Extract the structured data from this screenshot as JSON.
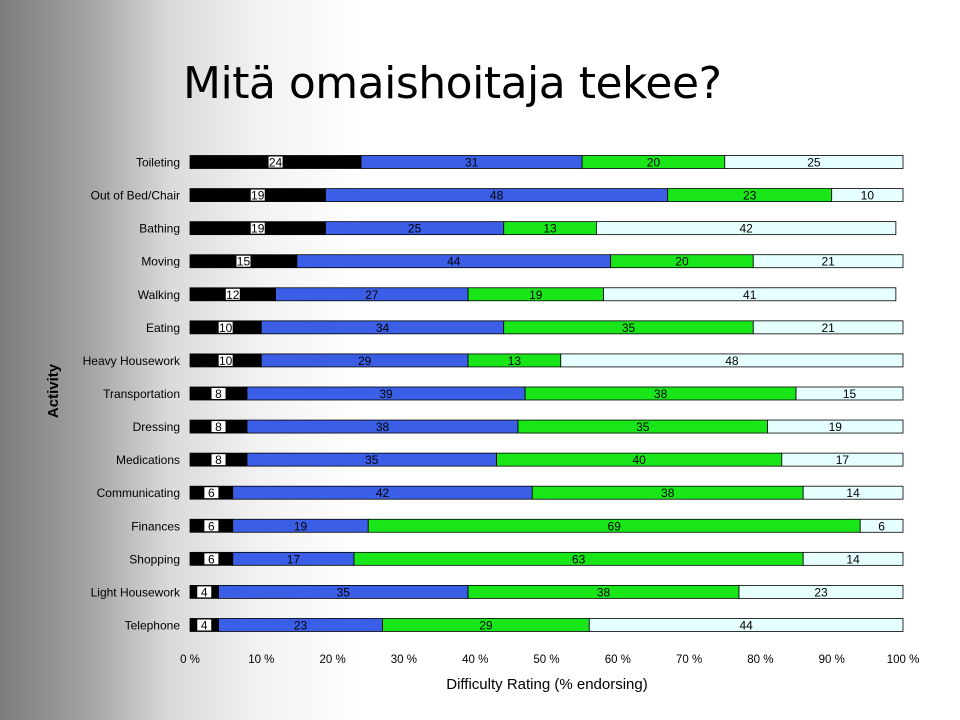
{
  "slide": {
    "title": "Mitä omaishoitaja tekee?"
  },
  "colors": {
    "segment_1": "#000000",
    "segment_2": "#3a5fe6",
    "segment_3": "#19e619",
    "segment_4": "#e6ffff",
    "label_box": "#ffffff"
  },
  "chart_data": {
    "type": "bar",
    "orientation": "horizontal",
    "stacked": true,
    "percent_scale": true,
    "title": "",
    "xlabel": "Difficulty Rating (% endorsing)",
    "ylabel": "Activity",
    "xlim": [
      0,
      100
    ],
    "x_ticks": [
      "0 %",
      "10 %",
      "20 %",
      "30 %",
      "40 %",
      "50 %",
      "60 %",
      "70 %",
      "80 %",
      "90 %",
      "100 %"
    ],
    "categories": [
      "Toileting",
      "Out of Bed/Chair",
      "Bathing",
      "Moving",
      "Walking",
      "Eating",
      "Heavy Housework",
      "Transportation",
      "Dressing",
      "Medications",
      "Communicating",
      "Finances",
      "Shopping",
      "Light Housework",
      "Telephone"
    ],
    "segments": [
      [
        24,
        31,
        20,
        25
      ],
      [
        19,
        48,
        23,
        10
      ],
      [
        19,
        25,
        13,
        42
      ],
      [
        15,
        44,
        20,
        21
      ],
      [
        12,
        27,
        19,
        41
      ],
      [
        10,
        34,
        35,
        21
      ],
      [
        10,
        29,
        13,
        48
      ],
      [
        8,
        39,
        38,
        15
      ],
      [
        8,
        38,
        35,
        19
      ],
      [
        8,
        35,
        40,
        17
      ],
      [
        6,
        42,
        38,
        14
      ],
      [
        6,
        19,
        69,
        6
      ],
      [
        6,
        17,
        63,
        14
      ],
      [
        4,
        35,
        38,
        23
      ],
      [
        4,
        23,
        29,
        44
      ]
    ],
    "grid": false,
    "legend": "none"
  }
}
